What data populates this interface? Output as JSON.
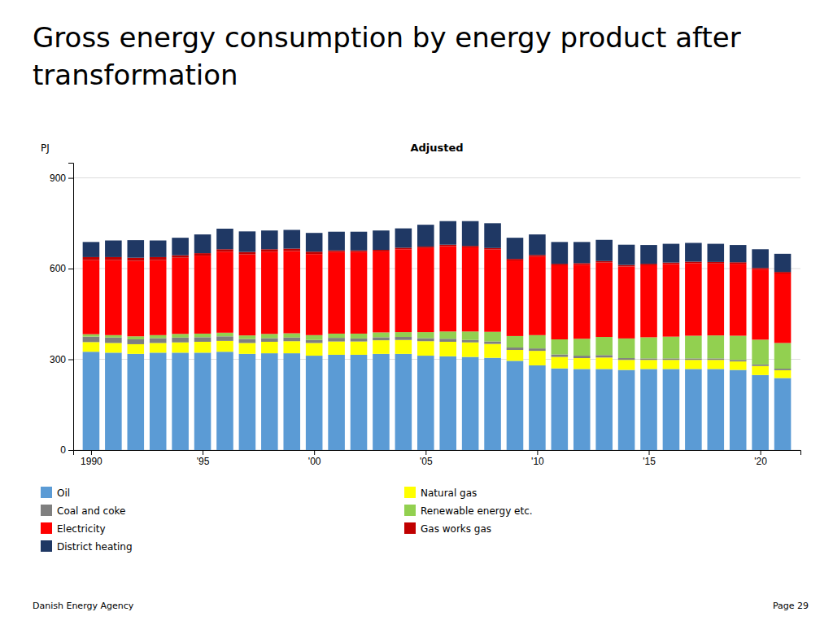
{
  "chart_data": {
    "type": "bar",
    "stacked": true,
    "title": "Gross energy consumption by energy product after transformation",
    "subtitle": "Adjusted",
    "y_label": "PJ",
    "x": [
      1990,
      1991,
      1992,
      1993,
      1994,
      1995,
      1996,
      1997,
      1998,
      1999,
      2000,
      2001,
      2002,
      2003,
      2004,
      2005,
      2006,
      2007,
      2008,
      2009,
      2010,
      2011,
      2012,
      2013,
      2014,
      2015,
      2016,
      2017,
      2018,
      2019,
      2020,
      2021
    ],
    "series": [
      {
        "name": "Oil",
        "color": "#5B9BD5",
        "values": [
          325,
          322,
          318,
          322,
          322,
          322,
          325,
          318,
          320,
          320,
          312,
          315,
          315,
          318,
          318,
          312,
          310,
          308,
          305,
          295,
          280,
          270,
          268,
          268,
          265,
          268,
          268,
          268,
          268,
          265,
          248,
          238
        ]
      },
      {
        "name": "Natural gas",
        "color": "#FFFF00",
        "values": [
          32,
          32,
          32,
          32,
          34,
          36,
          36,
          36,
          38,
          40,
          42,
          44,
          44,
          45,
          46,
          48,
          48,
          48,
          46,
          36,
          48,
          38,
          36,
          38,
          33,
          30,
          30,
          30,
          30,
          28,
          30,
          26
        ]
      },
      {
        "name": "Coal and coke",
        "color": "#7F7F7F",
        "values": [
          18,
          18,
          16,
          16,
          16,
          15,
          15,
          13,
          12,
          12,
          10,
          12,
          10,
          10,
          10,
          10,
          10,
          8,
          8,
          8,
          8,
          8,
          8,
          8,
          6,
          5,
          5,
          5,
          5,
          5,
          5,
          5
        ]
      },
      {
        "name": "Renewable energy etc.",
        "color": "#92D050",
        "values": [
          8,
          8,
          10,
          10,
          12,
          12,
          12,
          12,
          14,
          14,
          16,
          14,
          16,
          16,
          16,
          20,
          24,
          28,
          32,
          38,
          44,
          50,
          56,
          60,
          65,
          70,
          72,
          75,
          76,
          80,
          82,
          85
        ]
      },
      {
        "name": "Electricity",
        "color": "#FF0000",
        "values": [
          245,
          248,
          250,
          248,
          252,
          258,
          268,
          268,
          272,
          272,
          268,
          270,
          270,
          268,
          274,
          278,
          282,
          278,
          272,
          250,
          260,
          245,
          245,
          246,
          238,
          238,
          240,
          240,
          238,
          238,
          232,
          230
        ]
      },
      {
        "name": "Gas works gas",
        "color": "#C00000",
        "values": [
          10,
          10,
          10,
          10,
          8,
          8,
          8,
          8,
          8,
          8,
          8,
          5,
          5,
          5,
          5,
          5,
          5,
          5,
          5,
          5,
          5,
          5,
          5,
          5,
          5,
          5,
          5,
          5,
          5,
          5,
          5,
          5
        ]
      },
      {
        "name": "District heating",
        "color": "#1F3864",
        "values": [
          50,
          55,
          58,
          55,
          58,
          62,
          68,
          68,
          62,
          62,
          62,
          62,
          62,
          64,
          64,
          72,
          78,
          82,
          82,
          70,
          68,
          72,
          70,
          70,
          67,
          62,
          62,
          62,
          60,
          57,
          62,
          60
        ]
      }
    ],
    "xlim": [
      1989.2,
      2021.8
    ],
    "xticks": [
      {
        "value": 1990,
        "label": "1990"
      },
      {
        "value": 1995,
        "label": "'95"
      },
      {
        "value": 2000,
        "label": "'00"
      },
      {
        "value": 2005,
        "label": "'05"
      },
      {
        "value": 2010,
        "label": "'10"
      },
      {
        "value": 2015,
        "label": "'15"
      },
      {
        "value": 2020,
        "label": "'20"
      }
    ],
    "ylim": [
      0,
      950
    ],
    "yticks": [
      0,
      300,
      600,
      900
    ],
    "grid": true,
    "legend": "bottom",
    "annotations": [
      "Danish Energy Agency",
      "Page 29"
    ]
  }
}
